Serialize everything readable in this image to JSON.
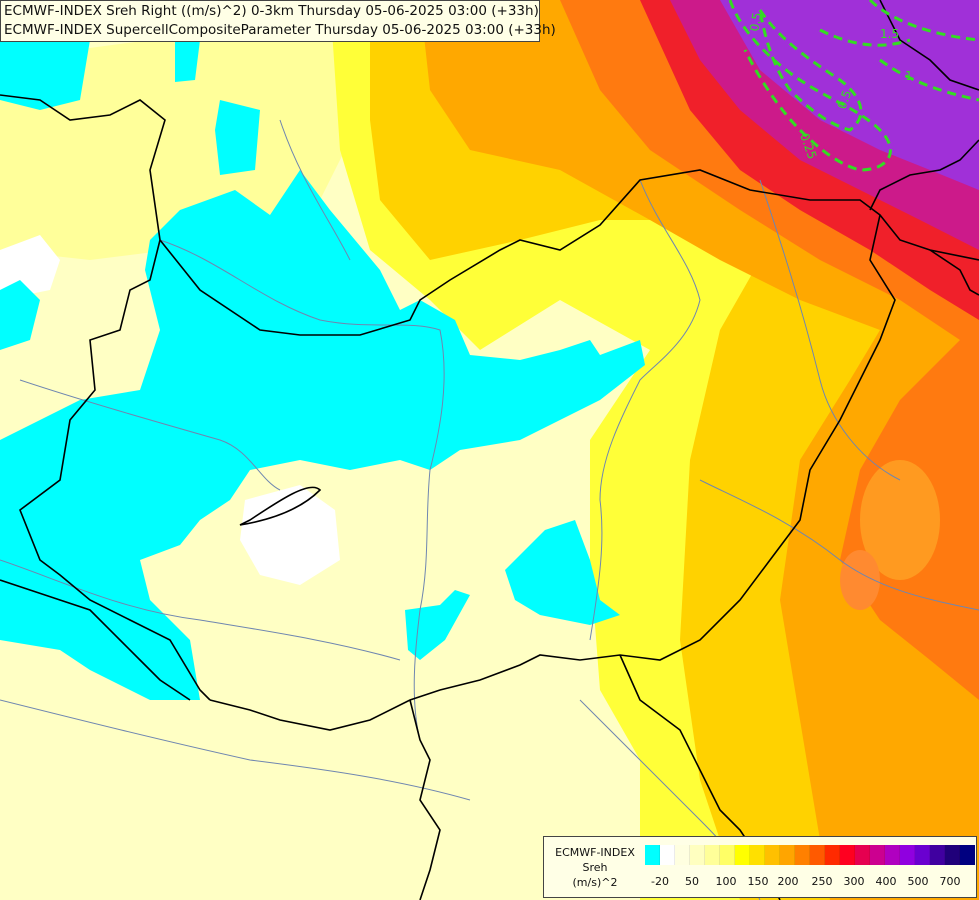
{
  "titles": {
    "line1": "ECMWF-INDEX Sreh Right ((m/s)^2) 0-3km Thursday 05-06-2025 03:00 (+33h)",
    "line2": "ECMWF-INDEX SupercellCompositeParameter Thursday 05-06-2025 03:00 (+33h)"
  },
  "legend": {
    "title_line1": "ECMWF-INDEX",
    "title_line2": "Sreh",
    "title_line3": "(m/s)^2",
    "colors": [
      "#00ffff",
      "#ffffff",
      "#ffffe0",
      "#ffffc0",
      "#ffff99",
      "#ffff66",
      "#ffff00",
      "#ffe000",
      "#ffc000",
      "#ffa500",
      "#ff8000",
      "#ff5a00",
      "#ff2a00",
      "#ff0020",
      "#e60050",
      "#cc0090",
      "#b000c0",
      "#9000e0",
      "#6a00d0",
      "#4000a0",
      "#20007a",
      "#000080"
    ],
    "ticks": [
      "-20",
      "50",
      "100",
      "150",
      "200",
      "250",
      "300",
      "400",
      "500",
      "700"
    ]
  },
  "contours": {
    "color": "#33dd22",
    "labels": [
      "0.5",
      "1.5",
      "1",
      "0.5",
      "0.25"
    ]
  },
  "colors": {
    "background": "#ffffc4",
    "cyan": "#00ffff",
    "white": "#ffffff",
    "border": "#000000",
    "river": "#6f86b0"
  }
}
